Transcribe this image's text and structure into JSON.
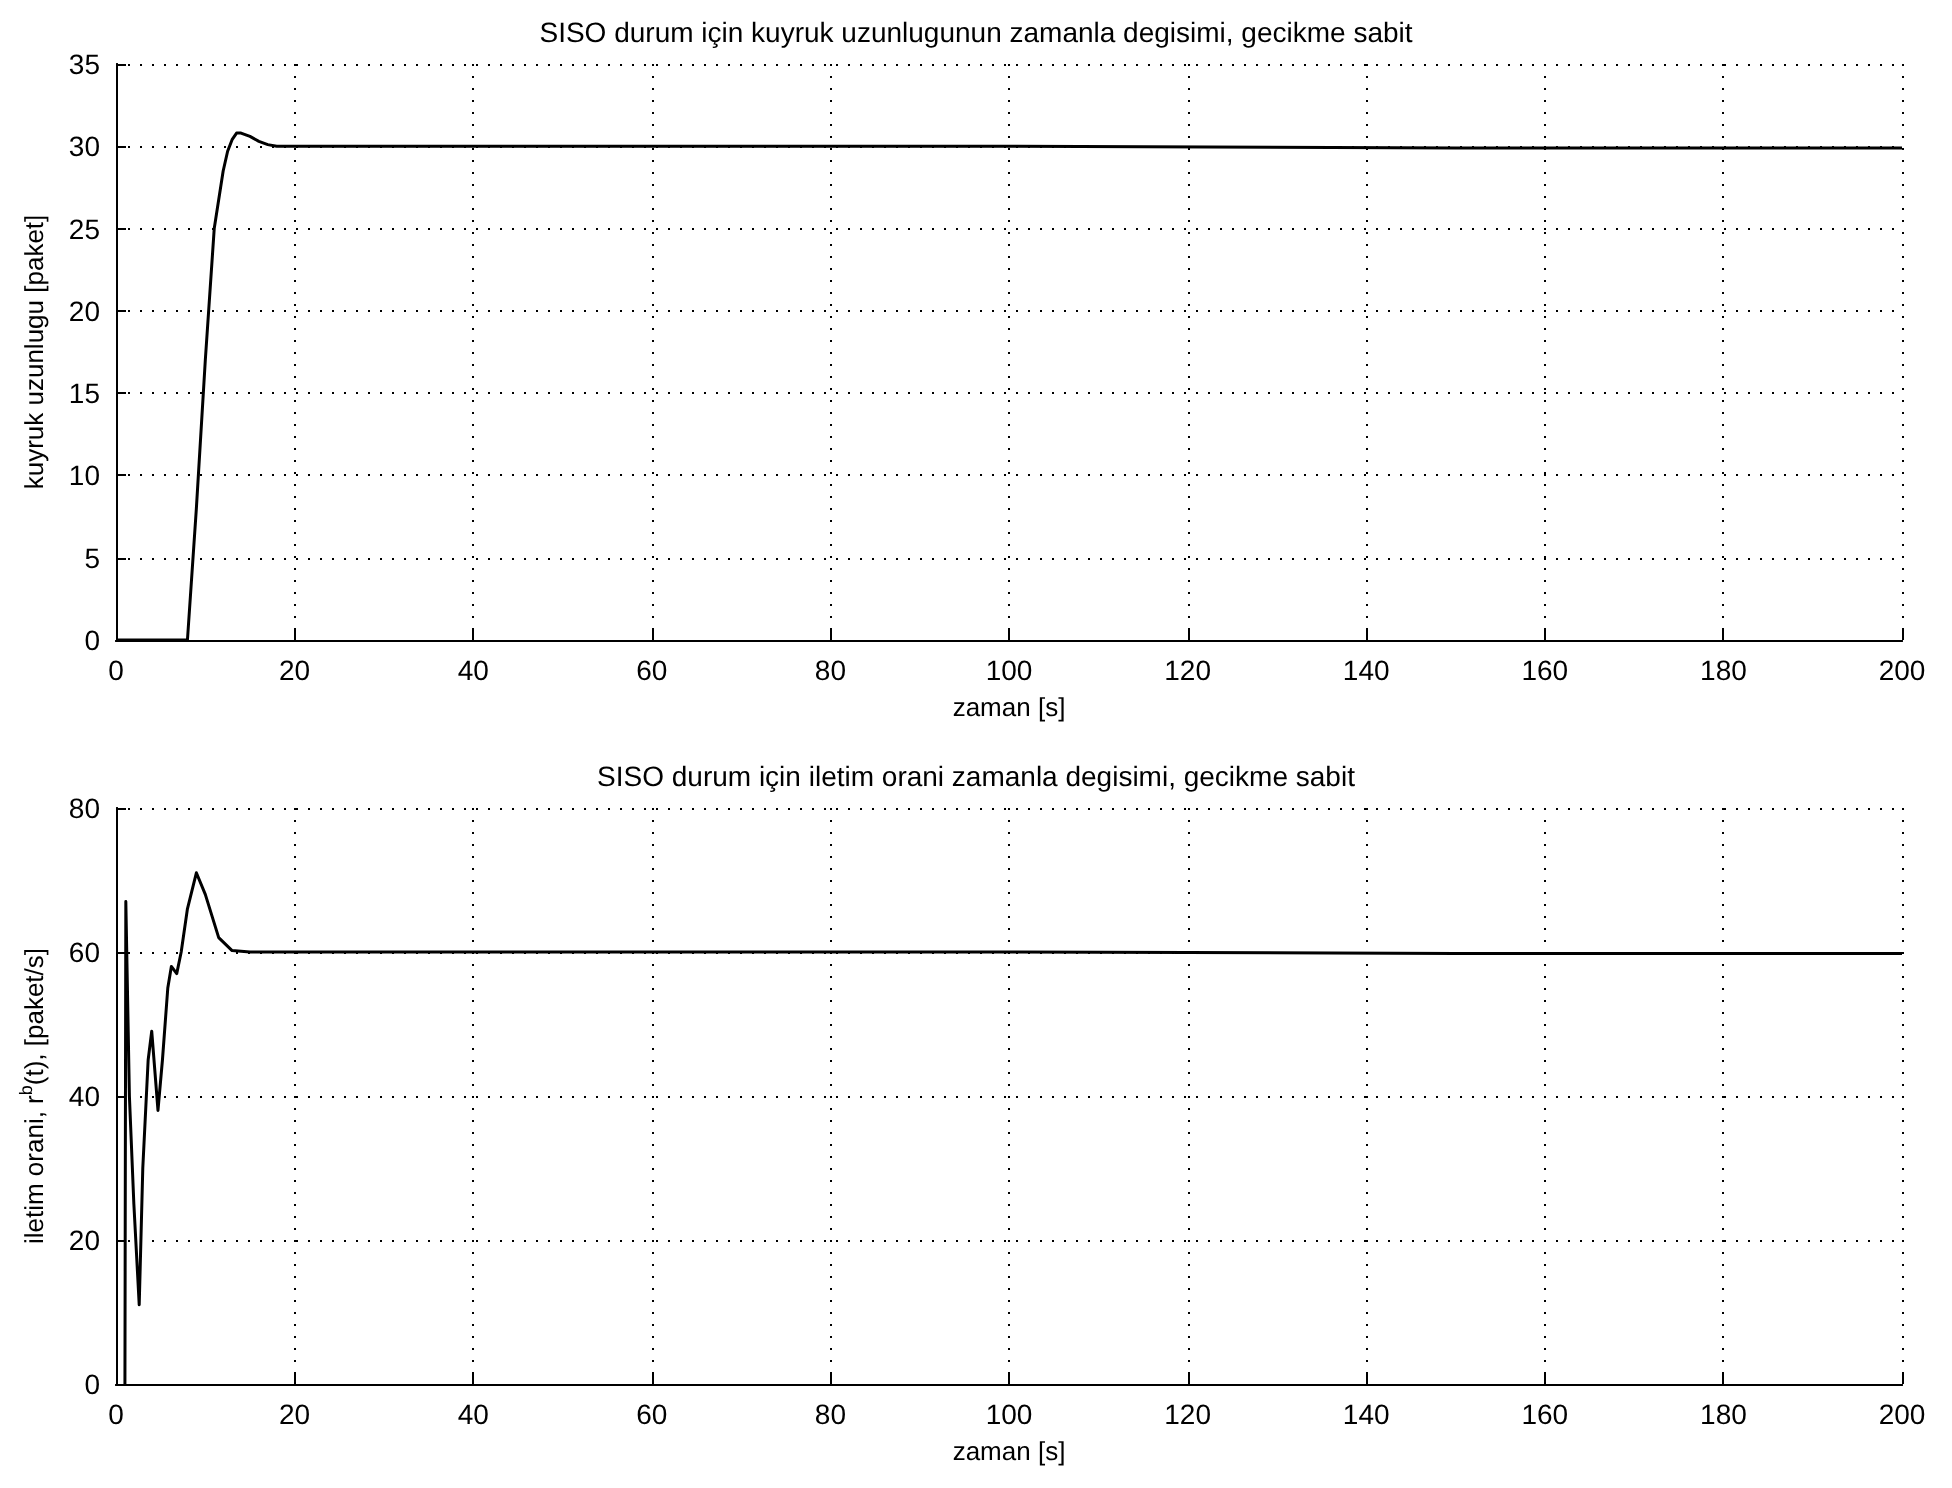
{
  "chart_data": [
    {
      "type": "line",
      "title": "SISO durum için kuyruk uzunlugunun zamanla degisimi, gecikme sabit",
      "xlabel": "zaman [s]",
      "ylabel": "kuyruk uzunlugu [paket]",
      "xlim": [
        0,
        200
      ],
      "xticks": [
        0,
        20,
        40,
        60,
        80,
        100,
        120,
        140,
        160,
        180,
        200
      ],
      "ylim": [
        0,
        35
      ],
      "yticks": [
        0,
        5,
        10,
        15,
        20,
        25,
        30,
        35
      ],
      "grid": true,
      "marker": "none",
      "line_style": "solid",
      "series": [
        {
          "color": "#000000",
          "x": [
            0,
            8,
            9,
            10,
            11,
            12,
            12.5,
            13,
            13.5,
            14,
            15,
            16,
            17,
            18,
            20,
            30,
            50,
            100,
            150,
            200
          ],
          "values": [
            0,
            0,
            8,
            17,
            25,
            28.5,
            29.7,
            30.4,
            30.8,
            30.8,
            30.6,
            30.3,
            30.1,
            30,
            30,
            30,
            30,
            30,
            29.9,
            29.9
          ]
        }
      ]
    },
    {
      "type": "line",
      "title": "SISO durum için iletim orani zamanla degisimi, gecikme sabit",
      "xlabel": "zaman [s]",
      "ylabel": "iletim orani, r$^{b}$(t), [paket/s]",
      "xlim": [
        0,
        200
      ],
      "xticks": [
        0,
        20,
        40,
        60,
        80,
        100,
        120,
        140,
        160,
        180,
        200
      ],
      "ylim": [
        0,
        80
      ],
      "yticks": [
        0,
        20,
        40,
        60,
        80
      ],
      "grid": true,
      "marker": "none",
      "line_style": "solid",
      "series": [
        {
          "color": "#000000",
          "x": [
            1,
            1.1,
            1.5,
            2,
            2.6,
            3,
            3.6,
            4,
            4.7,
            5.2,
            5.8,
            6.2,
            6.8,
            7.3,
            8,
            9,
            10,
            11.5,
            13,
            15,
            20,
            50,
            100,
            150,
            200
          ],
          "values": [
            0,
            67,
            40,
            25,
            11,
            30,
            45,
            49,
            38,
            45,
            55,
            58,
            57,
            60,
            66,
            71,
            68,
            62,
            60.2,
            60,
            60,
            60,
            60,
            59.8,
            59.8
          ]
        }
      ]
    }
  ]
}
